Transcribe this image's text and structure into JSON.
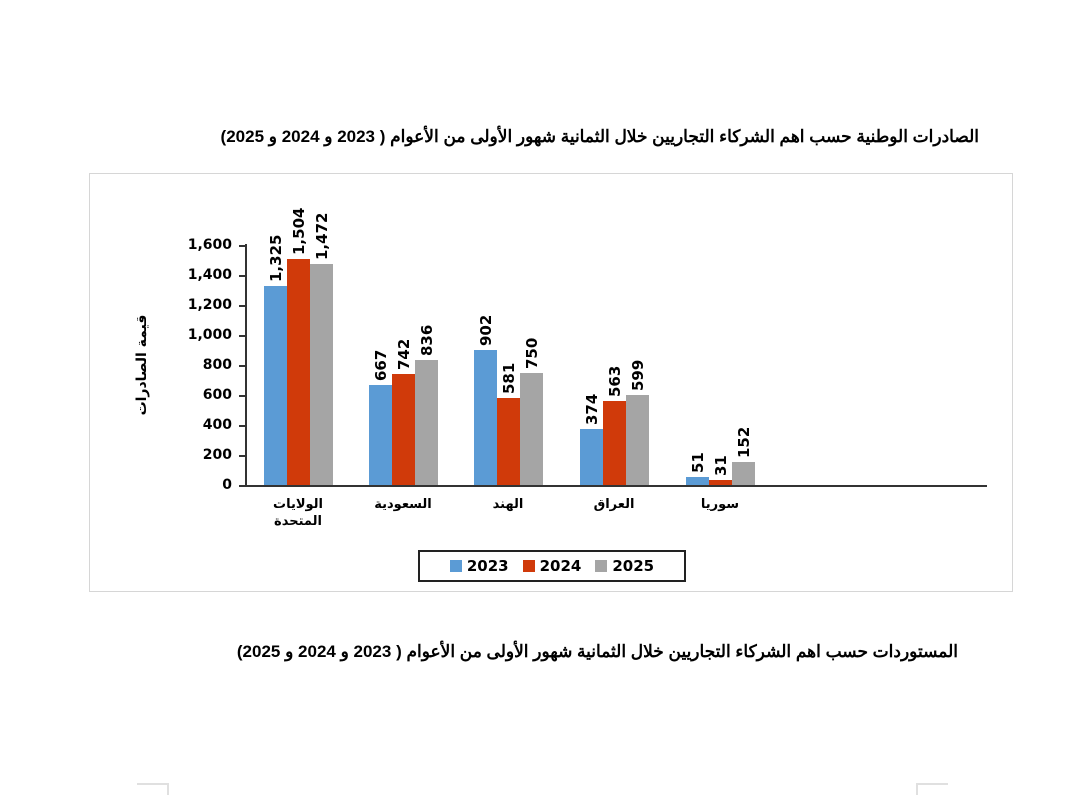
{
  "headings": {
    "exports_title": "الصادرات الوطنية حسب اهم الشركاء التجاريين خلال الثمانية شهور الأولى من الأعوام ( 2023 و 2024 و 2025)",
    "imports_title": "المستوردات حسب اهم الشركاء التجاريين خلال الثمانية شهور الأولى من الأعوام ( 2023 و 2024 و 2025)"
  },
  "colors": {
    "2023": "#5b9bd5",
    "2024": "#d03a0a",
    "2025": "#a5a5a5"
  },
  "chart_data": {
    "type": "bar",
    "title": "الصادرات الوطنية حسب اهم الشركاء التجاريين خلال الثمانية شهور الأولى من الأعوام ( 2023 و 2024 و 2025)",
    "xlabel": "",
    "ylabel": "قيمة الصادرات",
    "ylim": [
      0,
      1600
    ],
    "yticks": [
      "0",
      "200",
      "400",
      "600",
      "800",
      "1,000",
      "1,200",
      "1,400",
      "1,600"
    ],
    "categories": [
      "الولايات المتحدة",
      "السعودية",
      "الهند",
      "العراق",
      "سوريا"
    ],
    "category_lines": [
      [
        "الولايات",
        "المتحدة"
      ],
      [
        "السعودية"
      ],
      [
        "الهند"
      ],
      [
        "العراق"
      ],
      [
        "سوريا"
      ]
    ],
    "series": [
      {
        "name": "2023",
        "values": [
          1325,
          667,
          902,
          374,
          51
        ],
        "labels": [
          "1,325",
          "667",
          "902",
          "374",
          "51"
        ]
      },
      {
        "name": "2024",
        "values": [
          1504,
          742,
          581,
          563,
          31
        ],
        "labels": [
          "1,504",
          "742",
          "581",
          "563",
          "31"
        ]
      },
      {
        "name": "2025",
        "values": [
          1472,
          836,
          750,
          599,
          152
        ],
        "labels": [
          "1,472",
          "836",
          "750",
          "599",
          "152"
        ]
      }
    ],
    "legend": {
      "position": "bottom",
      "entries": [
        "2023",
        "2024",
        "2025"
      ]
    },
    "grid": false
  }
}
